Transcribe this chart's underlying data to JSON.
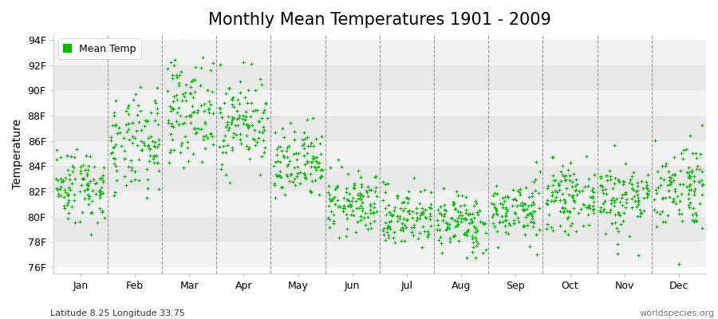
{
  "title": "Monthly Mean Temperatures 1901 - 2009",
  "ylabel": "Temperature",
  "xlabel_bottom": "Latitude 8.25 Longitude 33.75",
  "watermark": "worldspecies.org",
  "legend_label": "Mean Temp",
  "dot_color": "#00bb00",
  "dot_size": 7,
  "months": [
    "Jan",
    "Feb",
    "Mar",
    "Apr",
    "May",
    "Jun",
    "Jul",
    "Aug",
    "Sep",
    "Oct",
    "Nov",
    "Dec"
  ],
  "yticks": [
    76,
    78,
    80,
    82,
    84,
    86,
    88,
    90,
    92,
    94
  ],
  "ytick_labels": [
    "76F",
    "78F",
    "80F",
    "82F",
    "84F",
    "86F",
    "88F",
    "90F",
    "92F",
    "94F"
  ],
  "ylim": [
    75.5,
    94.5
  ],
  "band_colors": [
    "#f2f2f2",
    "#e8e8e8"
  ],
  "background_color": "#ffffff",
  "title_fontsize": 15,
  "axis_fontsize": 10,
  "tick_fontsize": 9,
  "legend_fontsize": 9,
  "grid_color": "#999999",
  "figsize": [
    9.0,
    4.0
  ],
  "dpi": 100,
  "monthly_means_F": [
    82.5,
    85.5,
    88.5,
    87.5,
    84.0,
    81.0,
    80.0,
    79.5,
    80.5,
    81.5,
    81.5,
    82.5
  ],
  "monthly_stds_F": [
    1.5,
    2.0,
    2.0,
    1.8,
    1.5,
    1.2,
    1.2,
    1.2,
    1.2,
    1.2,
    1.5,
    1.8
  ],
  "years": 109,
  "seed": 42
}
